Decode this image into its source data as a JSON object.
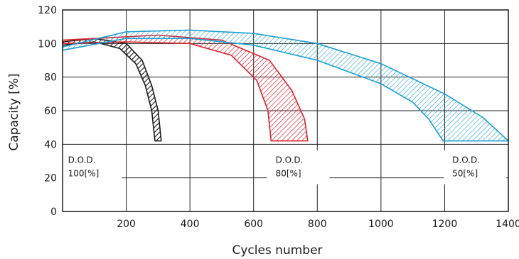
{
  "chart_data": {
    "type": "area",
    "title": "",
    "xlabel": "Cycles number",
    "ylabel": "Capacity [%]",
    "xlim": [
      0,
      1400
    ],
    "ylim": [
      0,
      120
    ],
    "x_ticks": [
      200,
      400,
      600,
      800,
      1000,
      1200,
      1400
    ],
    "y_ticks": [
      0,
      20,
      40,
      60,
      80,
      100,
      120
    ],
    "grid": true,
    "series": [
      {
        "color": "#1a1a1a",
        "hatch": "diagonal",
        "upper": [
          [
            0,
            101
          ],
          [
            100,
            103
          ],
          [
            200,
            100
          ],
          [
            250,
            90
          ],
          [
            280,
            75
          ],
          [
            300,
            60
          ],
          [
            310,
            42
          ]
        ],
        "lower": [
          [
            0,
            99
          ],
          [
            100,
            101
          ],
          [
            180,
            97
          ],
          [
            230,
            88
          ],
          [
            260,
            75
          ],
          [
            280,
            60
          ],
          [
            290,
            42
          ]
        ]
      },
      {
        "color": "#d9232e",
        "hatch": "diagonal",
        "upper": [
          [
            0,
            102
          ],
          [
            300,
            105
          ],
          [
            500,
            102
          ],
          [
            650,
            90
          ],
          [
            720,
            72
          ],
          [
            760,
            55
          ],
          [
            770,
            42
          ]
        ],
        "lower": [
          [
            0,
            100
          ],
          [
            200,
            101
          ],
          [
            400,
            100
          ],
          [
            530,
            93
          ],
          [
            610,
            78
          ],
          [
            645,
            60
          ],
          [
            655,
            42
          ]
        ]
      },
      {
        "color": "#1c9fd0",
        "hatch": "diagonal",
        "upper": [
          [
            0,
            98
          ],
          [
            200,
            107
          ],
          [
            400,
            108
          ],
          [
            600,
            106
          ],
          [
            800,
            100
          ],
          [
            1000,
            88
          ],
          [
            1200,
            70
          ],
          [
            1320,
            56
          ],
          [
            1400,
            42
          ]
        ],
        "lower": [
          [
            0,
            96
          ],
          [
            200,
            103
          ],
          [
            400,
            103
          ],
          [
            600,
            99
          ],
          [
            800,
            90
          ],
          [
            1000,
            76
          ],
          [
            1100,
            65
          ],
          [
            1150,
            55
          ],
          [
            1195,
            42
          ]
        ]
      }
    ],
    "annotations": [
      {
        "line1": "D.O.D.",
        "line2": "100[%]",
        "x": 8,
        "y": 28
      },
      {
        "line1": "D.O.D.",
        "line2": "80[%]",
        "x": 660,
        "y": 28
      },
      {
        "line1": "D.O.D.",
        "line2": "50[%]",
        "x": 1215,
        "y": 28
      }
    ]
  }
}
